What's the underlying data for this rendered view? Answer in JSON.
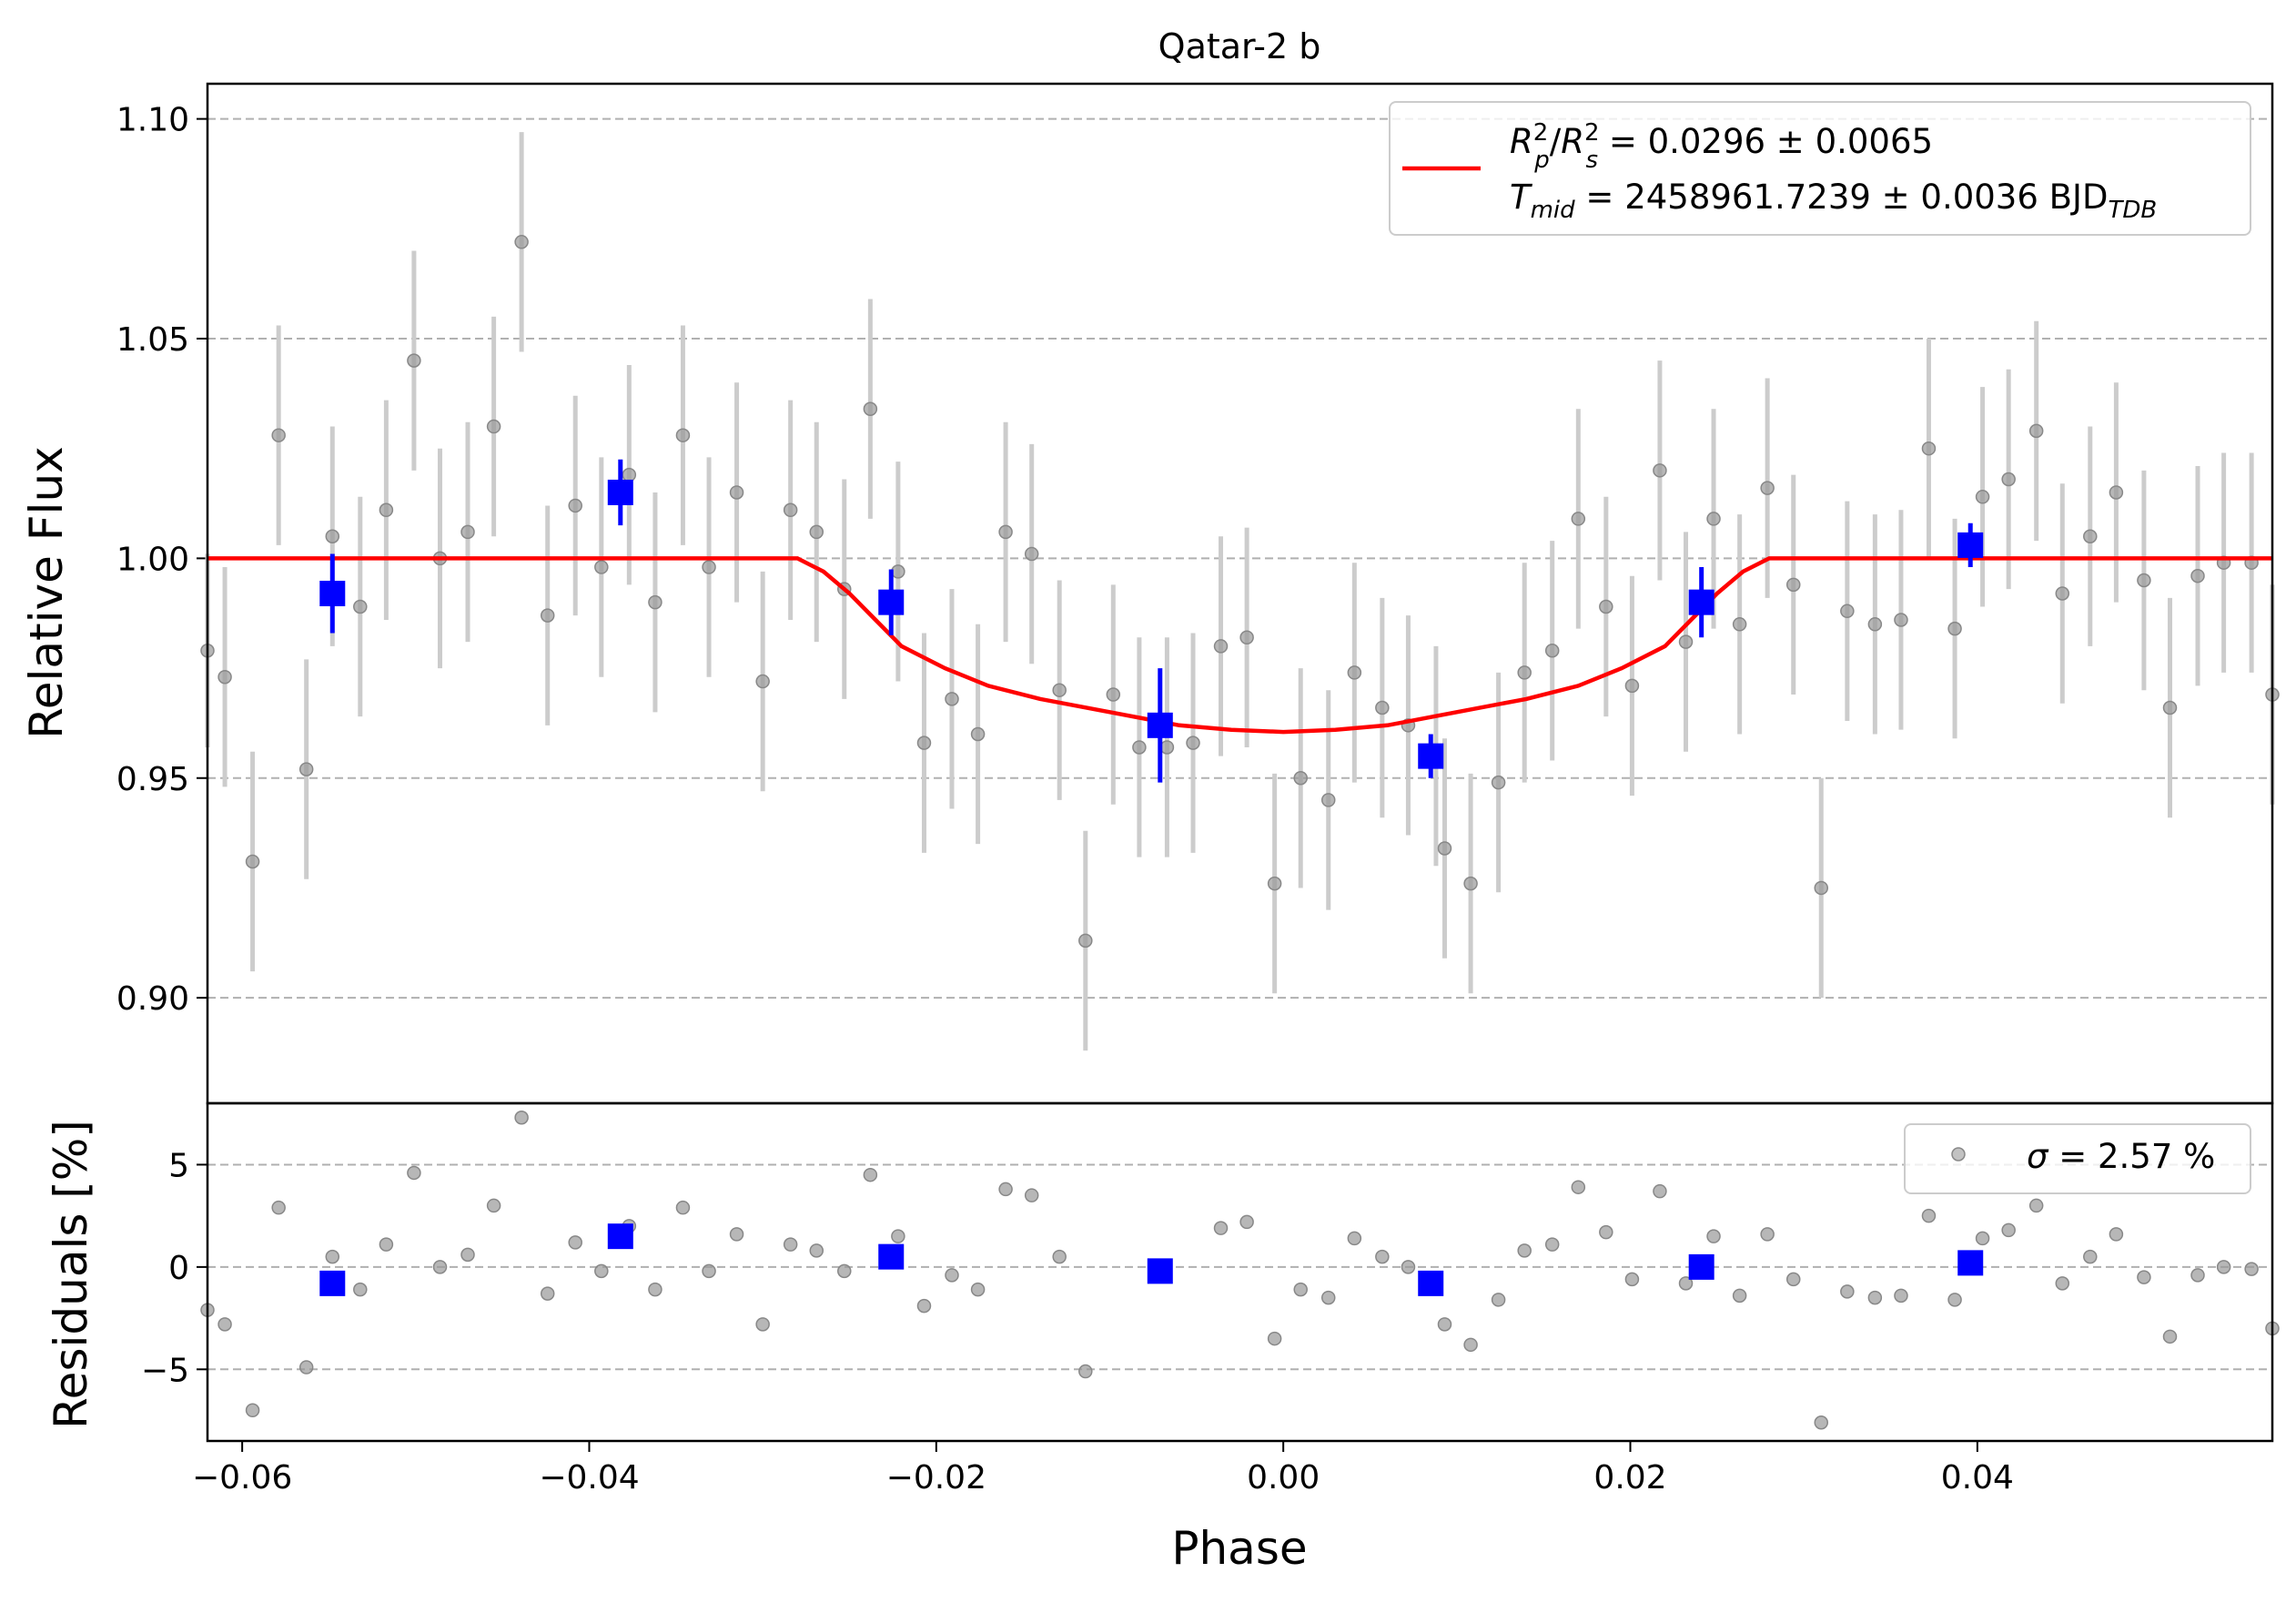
{
  "chart_data": [
    {
      "type": "scatter",
      "title": "Qatar-2 b",
      "xlabel": "",
      "ylabel": "Relative Flux",
      "xlim": [
        -0.062,
        0.057
      ],
      "ylim": [
        0.876,
        1.108
      ],
      "y_ticks": [
        0.9,
        0.95,
        1.0,
        1.05,
        1.1
      ],
      "y_tick_labels": [
        "0.90",
        "0.95",
        "1.00",
        "1.05",
        "1.10"
      ],
      "grid": "y, dashed",
      "legend_position": "top-right",
      "legend": {
        "line1": {
          "r": "R",
          "p": "p",
          "two": "2",
          "slash": "/",
          "s": "s",
          "value": " = 0.0296 ± 0.0065"
        },
        "line2": {
          "t": "T",
          "mid": "mid",
          "value": " = 2458961.7239 ± 0.0036 BJD",
          "tdb": "TDB"
        }
      },
      "colors": {
        "raw": "#999999",
        "raw_err": "#cccccc",
        "binned": "#0000ff",
        "model": "#ff0000",
        "grid": "#b0b0b0"
      },
      "raw_points": [
        [
          -0.062,
          0.979,
          0.022
        ],
        [
          -0.061,
          0.973,
          0.025
        ],
        [
          -0.0594,
          0.931,
          0.025
        ],
        [
          -0.0579,
          1.028,
          0.025
        ],
        [
          -0.0563,
          0.952,
          0.025
        ],
        [
          -0.0548,
          1.005,
          0.025
        ],
        [
          -0.0532,
          0.989,
          0.025
        ],
        [
          -0.0517,
          1.011,
          0.025
        ],
        [
          -0.0501,
          1.045,
          0.025
        ],
        [
          -0.0486,
          1.0,
          0.025
        ],
        [
          -0.047,
          1.006,
          0.025
        ],
        [
          -0.0455,
          1.03,
          0.025
        ],
        [
          -0.0439,
          1.072,
          0.025
        ],
        [
          -0.0424,
          0.987,
          0.025
        ],
        [
          -0.0408,
          1.012,
          0.025
        ],
        [
          -0.0393,
          0.998,
          0.025
        ],
        [
          -0.0377,
          1.019,
          0.025
        ],
        [
          -0.0362,
          0.99,
          0.025
        ],
        [
          -0.0346,
          1.028,
          0.025
        ],
        [
          -0.0331,
          0.998,
          0.025
        ],
        [
          -0.0315,
          1.015,
          0.025
        ],
        [
          -0.03,
          0.972,
          0.025
        ],
        [
          -0.0284,
          1.011,
          0.025
        ],
        [
          -0.0269,
          1.006,
          0.025
        ],
        [
          -0.0253,
          0.993,
          0.025
        ],
        [
          -0.0238,
          1.034,
          0.025
        ],
        [
          -0.0222,
          0.997,
          0.025
        ],
        [
          -0.0207,
          0.958,
          0.025
        ],
        [
          -0.0191,
          0.968,
          0.025
        ],
        [
          -0.0176,
          0.96,
          0.025
        ],
        [
          -0.016,
          1.006,
          0.025
        ],
        [
          -0.0145,
          1.001,
          0.025
        ],
        [
          -0.0129,
          0.97,
          0.025
        ],
        [
          -0.0114,
          0.913,
          0.025
        ],
        [
          -0.0098,
          0.969,
          0.025
        ],
        [
          -0.0083,
          0.957,
          0.025
        ],
        [
          -0.0067,
          0.957,
          0.025
        ],
        [
          -0.0052,
          0.958,
          0.025
        ],
        [
          -0.0036,
          0.98,
          0.025
        ],
        [
          -0.0021,
          0.982,
          0.025
        ],
        [
          -0.0005,
          0.926,
          0.025
        ],
        [
          0.001,
          0.95,
          0.025
        ],
        [
          0.0026,
          0.945,
          0.025
        ],
        [
          0.0041,
          0.974,
          0.025
        ],
        [
          0.0057,
          0.966,
          0.025
        ],
        [
          0.0072,
          0.962,
          0.025
        ],
        [
          0.0088,
          0.955,
          0.025
        ],
        [
          0.0093,
          0.934,
          0.025
        ],
        [
          0.0108,
          0.926,
          0.025
        ],
        [
          0.0124,
          0.949,
          0.025
        ],
        [
          0.0139,
          0.974,
          0.025
        ],
        [
          0.0155,
          0.979,
          0.025
        ],
        [
          0.017,
          1.009,
          0.025
        ],
        [
          0.0186,
          0.989,
          0.025
        ],
        [
          0.0201,
          0.971,
          0.025
        ],
        [
          0.0217,
          1.02,
          0.025
        ],
        [
          0.0232,
          0.981,
          0.025
        ],
        [
          0.0248,
          1.009,
          0.025
        ],
        [
          0.0263,
          0.985,
          0.025
        ],
        [
          0.0279,
          1.016,
          0.025
        ],
        [
          0.0294,
          0.994,
          0.025
        ],
        [
          0.031,
          0.925,
          0.025
        ],
        [
          0.0325,
          0.988,
          0.025
        ],
        [
          0.0341,
          0.985,
          0.025
        ],
        [
          0.0356,
          0.986,
          0.025
        ],
        [
          0.0372,
          1.025,
          0.025
        ],
        [
          0.0387,
          0.984,
          0.025
        ],
        [
          0.0403,
          1.014,
          0.025
        ],
        [
          0.0418,
          1.018,
          0.025
        ],
        [
          0.0434,
          1.029,
          0.025
        ],
        [
          0.0449,
          0.992,
          0.025
        ],
        [
          0.0465,
          1.005,
          0.025
        ],
        [
          0.048,
          1.015,
          0.025
        ],
        [
          0.0496,
          0.995,
          0.025
        ],
        [
          0.0511,
          0.966,
          0.025
        ],
        [
          0.0527,
          0.996,
          0.025
        ],
        [
          0.0542,
          0.999,
          0.025
        ],
        [
          0.0558,
          0.999,
          0.025
        ],
        [
          0.057,
          0.969,
          0.025
        ]
      ],
      "binned_points": [
        [
          -0.0548,
          0.992,
          0.009
        ],
        [
          -0.0382,
          1.015,
          0.0075
        ],
        [
          -0.0226,
          0.99,
          0.0075
        ],
        [
          -0.0071,
          0.962,
          0.013
        ],
        [
          0.0085,
          0.955,
          0.005
        ],
        [
          0.0241,
          0.99,
          0.008
        ],
        [
          0.0396,
          1.003,
          0.005
        ]
      ],
      "model": [
        [
          -0.062,
          1.0
        ],
        [
          -0.028,
          1.0
        ],
        [
          -0.0265,
          0.997
        ],
        [
          -0.025,
          0.992
        ],
        [
          -0.0235,
          0.986
        ],
        [
          -0.022,
          0.98
        ],
        [
          -0.0195,
          0.975
        ],
        [
          -0.017,
          0.971
        ],
        [
          -0.014,
          0.968
        ],
        [
          -0.01,
          0.965
        ],
        [
          -0.006,
          0.962
        ],
        [
          -0.003,
          0.961
        ],
        [
          0.0,
          0.9605
        ],
        [
          0.003,
          0.961
        ],
        [
          0.006,
          0.962
        ],
        [
          0.01,
          0.965
        ],
        [
          0.014,
          0.968
        ],
        [
          0.017,
          0.971
        ],
        [
          0.0195,
          0.975
        ],
        [
          0.022,
          0.98
        ],
        [
          0.0235,
          0.986
        ],
        [
          0.025,
          0.992
        ],
        [
          0.0265,
          0.997
        ],
        [
          0.028,
          1.0
        ],
        [
          0.057,
          1.0
        ]
      ]
    },
    {
      "type": "scatter",
      "title": "",
      "xlabel": "Phase",
      "ylabel": "Residuals [%]",
      "xlim": [
        -0.062,
        0.057
      ],
      "ylim": [
        -8.5,
        8.0
      ],
      "x_ticks": [
        -0.06,
        -0.04,
        -0.02,
        0.0,
        0.02,
        0.04
      ],
      "x_tick_labels": [
        "−0.06",
        "−0.04",
        "−0.02",
        "0.00",
        "0.02",
        "0.04"
      ],
      "y_ticks": [
        -5,
        0,
        5
      ],
      "y_tick_labels": [
        "−5",
        "0",
        "5"
      ],
      "grid": "y, dashed",
      "legend_position": "top-right",
      "legend": {
        "sigma": "σ",
        "value": " = 2.57 %"
      },
      "raw_points": [
        [
          -0.062,
          -2.1
        ],
        [
          -0.061,
          -2.8
        ],
        [
          -0.0594,
          -7.0
        ],
        [
          -0.0579,
          2.9
        ],
        [
          -0.0563,
          -4.9
        ],
        [
          -0.0548,
          0.5
        ],
        [
          -0.0532,
          -1.1
        ],
        [
          -0.0517,
          1.1
        ],
        [
          -0.0501,
          4.6
        ],
        [
          -0.0486,
          0.0
        ],
        [
          -0.047,
          0.6
        ],
        [
          -0.0455,
          3.0
        ],
        [
          -0.0439,
          7.3
        ],
        [
          -0.0424,
          -1.3
        ],
        [
          -0.0408,
          1.2
        ],
        [
          -0.0393,
          -0.2
        ],
        [
          -0.0377,
          2.0
        ],
        [
          -0.0362,
          -1.1
        ],
        [
          -0.0346,
          2.9
        ],
        [
          -0.0331,
          -0.2
        ],
        [
          -0.0315,
          1.6
        ],
        [
          -0.03,
          -2.8
        ],
        [
          -0.0284,
          1.1
        ],
        [
          -0.0269,
          0.8
        ],
        [
          -0.0253,
          -0.2
        ],
        [
          -0.0238,
          4.5
        ],
        [
          -0.0222,
          1.5
        ],
        [
          -0.0207,
          -1.9
        ],
        [
          -0.0191,
          -0.4
        ],
        [
          -0.0176,
          -1.1
        ],
        [
          -0.016,
          3.8
        ],
        [
          -0.0145,
          3.5
        ],
        [
          -0.0129,
          0.5
        ],
        [
          -0.0114,
          -5.1
        ],
        [
          -0.0036,
          1.9
        ],
        [
          -0.0021,
          2.2
        ],
        [
          -0.0005,
          -3.5
        ],
        [
          0.001,
          -1.1
        ],
        [
          0.0026,
          -1.5
        ],
        [
          0.0041,
          1.4
        ],
        [
          0.0057,
          0.5
        ],
        [
          0.0072,
          0.0
        ],
        [
          0.0093,
          -2.8
        ],
        [
          0.0108,
          -3.8
        ],
        [
          0.0124,
          -1.6
        ],
        [
          0.0139,
          0.8
        ],
        [
          0.0155,
          1.1
        ],
        [
          0.017,
          3.9
        ],
        [
          0.0186,
          1.7
        ],
        [
          0.0201,
          -0.6
        ],
        [
          0.0217,
          3.7
        ],
        [
          0.0232,
          -0.8
        ],
        [
          0.0248,
          1.5
        ],
        [
          0.0263,
          -1.4
        ],
        [
          0.0279,
          1.6
        ],
        [
          0.0294,
          -0.6
        ],
        [
          0.031,
          -7.6
        ],
        [
          0.0325,
          -1.2
        ],
        [
          0.0341,
          -1.5
        ],
        [
          0.0356,
          -1.4
        ],
        [
          0.0372,
          2.5
        ],
        [
          0.0387,
          -1.6
        ],
        [
          0.0403,
          1.4
        ],
        [
          0.0418,
          1.8
        ],
        [
          0.0434,
          3.0
        ],
        [
          0.0449,
          -0.8
        ],
        [
          0.0465,
          0.5
        ],
        [
          0.048,
          1.6
        ],
        [
          0.0496,
          -0.5
        ],
        [
          0.0511,
          -3.4
        ],
        [
          0.0527,
          -0.4
        ],
        [
          0.0542,
          0.0
        ],
        [
          0.0558,
          -0.1
        ],
        [
          0.057,
          -3.0
        ]
      ],
      "binned_points": [
        [
          -0.0548,
          -0.8
        ],
        [
          -0.0382,
          1.5
        ],
        [
          -0.0226,
          0.5
        ],
        [
          -0.0071,
          -0.2
        ],
        [
          0.0085,
          -0.8
        ],
        [
          0.0241,
          0.0
        ],
        [
          0.0396,
          0.2
        ]
      ]
    }
  ]
}
